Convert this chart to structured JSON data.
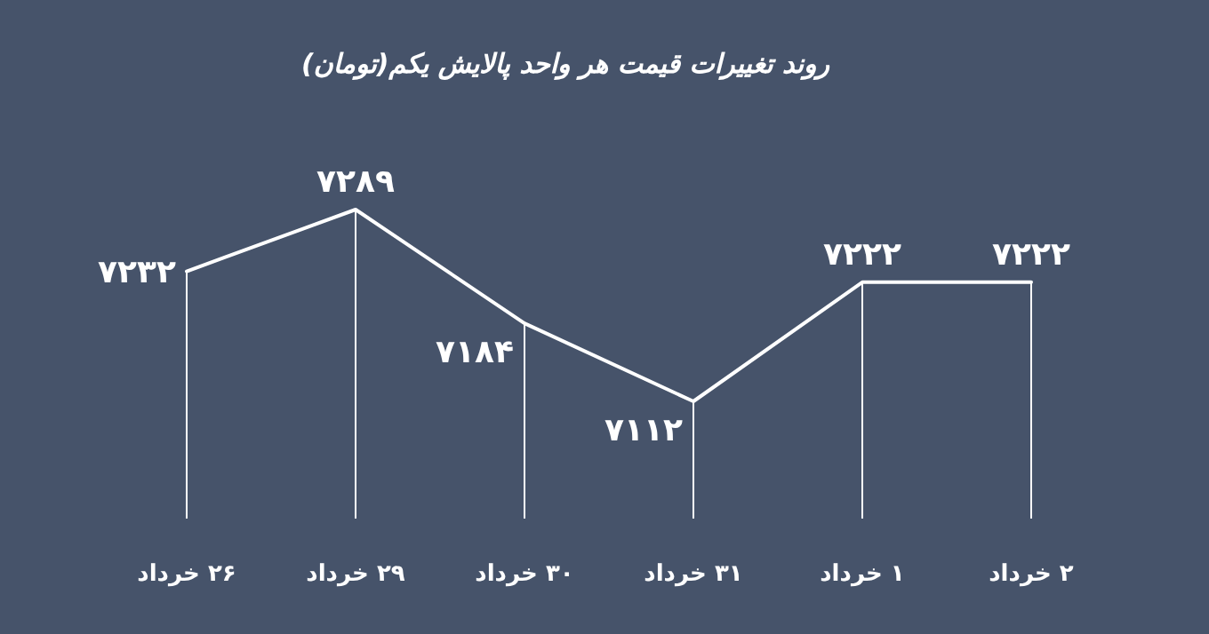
{
  "chart_data": {
    "type": "line",
    "title": "روند تغییرات قیمت هر واحد پالایش یکم(تومان)",
    "categories": [
      "۲۶ خرداد",
      "۲۹ خرداد",
      "۳۰ خرداد",
      "۳۱ خرداد",
      "۱ خرداد",
      "۲ خرداد"
    ],
    "values": [
      7232,
      7289,
      7184,
      7112,
      7222,
      7222
    ],
    "value_labels": [
      "۷۲۳۲",
      "۷۲۸۹",
      "۷۱۸۴",
      "۷۱۱۲",
      "۷۲۲۲",
      "۷۲۲۲"
    ],
    "color": "#ffffff",
    "grid": "x"
  }
}
